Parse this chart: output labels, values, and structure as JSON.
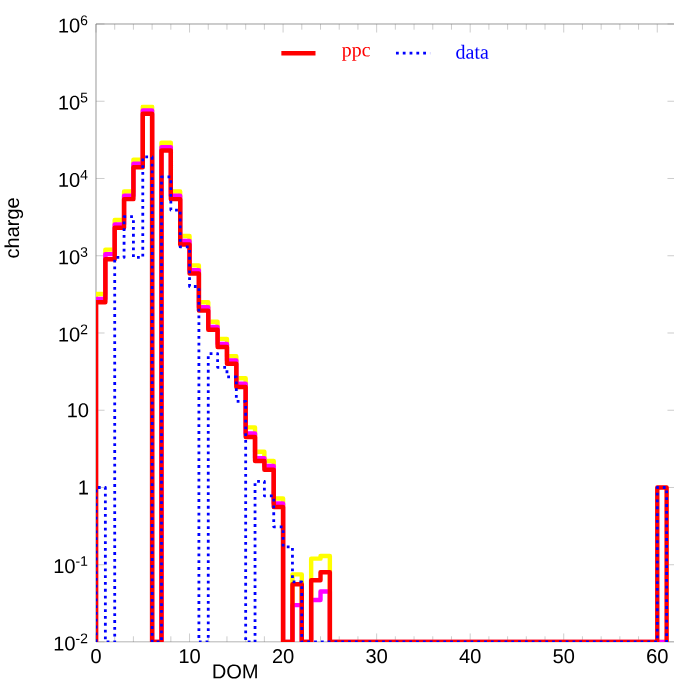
{
  "chart_data": {
    "type": "histogram",
    "xlabel": "DOM",
    "ylabel": "charge",
    "log": "y",
    "legend": "top",
    "grid": false,
    "bins": [
      0,
      1,
      2,
      3,
      4,
      5,
      6,
      7,
      8,
      9,
      10,
      11,
      12,
      13,
      14,
      15,
      16,
      17,
      18,
      19,
      20,
      21,
      22,
      23,
      24,
      25,
      60,
      61
    ],
    "series": [
      {
        "color": "#ffff00",
        "line_style": "solid",
        "values": [
          320,
          1200,
          2900,
          6800,
          17500,
          85000,
          null,
          29000,
          6800,
          1800,
          750,
          250,
          140,
          84,
          50,
          26,
          6,
          2.9,
          2.2,
          0.72,
          null,
          0.075,
          null,
          0.12,
          0.13,
          null,
          null
        ]
      },
      {
        "color": "#ff00ff",
        "line_style": "solid",
        "values": [
          275,
          1050,
          2550,
          6000,
          15500,
          76000,
          null,
          25500,
          6000,
          1550,
          650,
          215,
          120,
          72,
          44,
          22,
          5,
          2.4,
          1.9,
          0.62,
          null,
          0.03,
          null,
          0.035,
          0.045,
          null,
          null
        ]
      },
      {
        "name": "ppc",
        "color": "#ff0000",
        "line_style": "solid",
        "values": [
          250,
          900,
          2300,
          5400,
          14000,
          69000,
          null,
          23000,
          5400,
          1400,
          590,
          195,
          110,
          66,
          40,
          20,
          4.5,
          2.2,
          1.7,
          0.56,
          null,
          0.056,
          null,
          0.063,
          0.08,
          null,
          1
        ]
      },
      {
        "name": "data",
        "color": "#0000ff",
        "line_style": "dotted",
        "values": [
          1,
          null,
          950,
          3200,
          950,
          19000,
          null,
          10500,
          3900,
          1300,
          400,
          null,
          54,
          36,
          27,
          13,
          null,
          1.2,
          0.78,
          0.31,
          0.17,
          0.06,
          null,
          null,
          null,
          null,
          1
        ]
      }
    ],
    "xlim": [
      0,
      62
    ],
    "ylim": [
      0.01,
      1000000
    ],
    "xticks": [
      0,
      10,
      20,
      30,
      40,
      50,
      60
    ],
    "yticks": [
      {
        "value": 0.01,
        "label": "10$^{-2}$"
      },
      {
        "value": 0.1,
        "label": "10$^{-1}$"
      },
      1,
      10,
      {
        "value": 100,
        "label": "10$^{2}$"
      },
      {
        "value": 1000,
        "label": "10$^{3}$"
      },
      {
        "value": 10000,
        "label": "10$^{4}$"
      },
      {
        "value": 100000,
        "label": "10$^{5}$"
      },
      {
        "value": 1000000,
        "label": "10$^{6}$"
      }
    ]
  }
}
